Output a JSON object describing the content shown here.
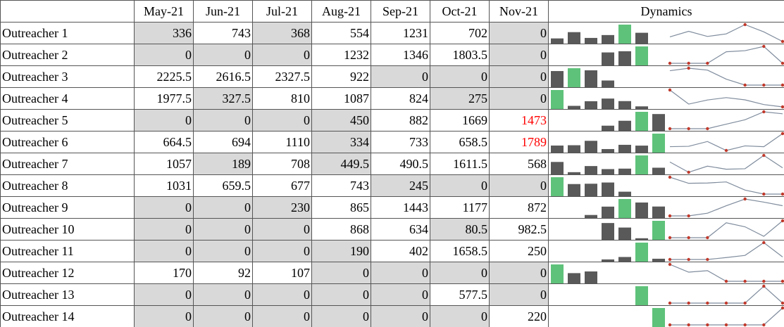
{
  "table": {
    "header": [
      "May-21",
      "Jun-21",
      "Jul-21",
      "Aug-21",
      "Sep-21",
      "Oct-21",
      "Nov-21"
    ],
    "dynamics_header": "Dynamics",
    "shade_color": "#d9d9d9",
    "bar_color": "#595959",
    "max_color": "#5ec27a",
    "line_color": "#7f8c9d",
    "marker_color": "#c0392b",
    "red_color": "#ff0000",
    "rows": [
      {
        "label": "Outreacher 1",
        "values": [
          336,
          743,
          368,
          554,
          1231,
          702,
          0
        ],
        "shaded": [
          0,
          2,
          6
        ]
      },
      {
        "label": "Outreacher 2",
        "values": [
          0,
          0,
          0,
          1232,
          1346,
          1803.5,
          0
        ],
        "shaded": [
          0,
          1,
          2,
          6
        ]
      },
      {
        "label": "Outreacher 3",
        "values": [
          2225.5,
          2616.5,
          2327.5,
          922,
          0,
          0,
          0
        ],
        "shaded": [
          4,
          5,
          6
        ]
      },
      {
        "label": "Outreacher 4",
        "values": [
          1977.5,
          327.5,
          810,
          1087,
          824,
          275,
          0
        ],
        "shaded": [
          1,
          5,
          6
        ]
      },
      {
        "label": "Outreacher 5",
        "values": [
          0,
          0,
          0,
          450,
          882,
          1669,
          1473
        ],
        "shaded": [
          0,
          1,
          2,
          3
        ],
        "red": [
          6
        ]
      },
      {
        "label": "Outreacher 6",
        "values": [
          664.5,
          694,
          1110,
          334,
          733,
          658.5,
          1789
        ],
        "shaded": [
          3
        ],
        "red": [
          6
        ]
      },
      {
        "label": "Outreacher 7",
        "values": [
          1057,
          189,
          708,
          449.5,
          490.5,
          1611.5,
          568
        ],
        "shaded": [
          1,
          3
        ]
      },
      {
        "label": "Outreacher 8",
        "values": [
          1031,
          659.5,
          677,
          743,
          245,
          0,
          0
        ],
        "shaded": [
          4,
          5,
          6
        ]
      },
      {
        "label": "Outreacher 9",
        "values": [
          0,
          0,
          230,
          865,
          1443,
          1177,
          872
        ],
        "shaded": [
          0,
          1,
          2
        ]
      },
      {
        "label": "Outreacher 10",
        "values": [
          0,
          0,
          0,
          868,
          634,
          80.5,
          982.5
        ],
        "shaded": [
          0,
          1,
          2,
          5
        ]
      },
      {
        "label": "Outreacher 11",
        "values": [
          0,
          0,
          0,
          190,
          402,
          1658.5,
          250
        ],
        "shaded": [
          0,
          1,
          2,
          3
        ]
      },
      {
        "label": "Outreacher 12",
        "values": [
          170,
          92,
          107,
          0,
          0,
          0,
          0
        ],
        "shaded": [
          3,
          4,
          5,
          6
        ]
      },
      {
        "label": "Outreacher 13",
        "values": [
          0,
          0,
          0,
          0,
          0,
          577.5,
          0
        ],
        "shaded": [
          0,
          1,
          2,
          3,
          4,
          6
        ]
      },
      {
        "label": "Outreacher 14",
        "values": [
          0,
          0,
          0,
          0,
          0,
          0,
          220
        ],
        "shaded": [
          0,
          1,
          2,
          3,
          4,
          5
        ]
      }
    ]
  }
}
